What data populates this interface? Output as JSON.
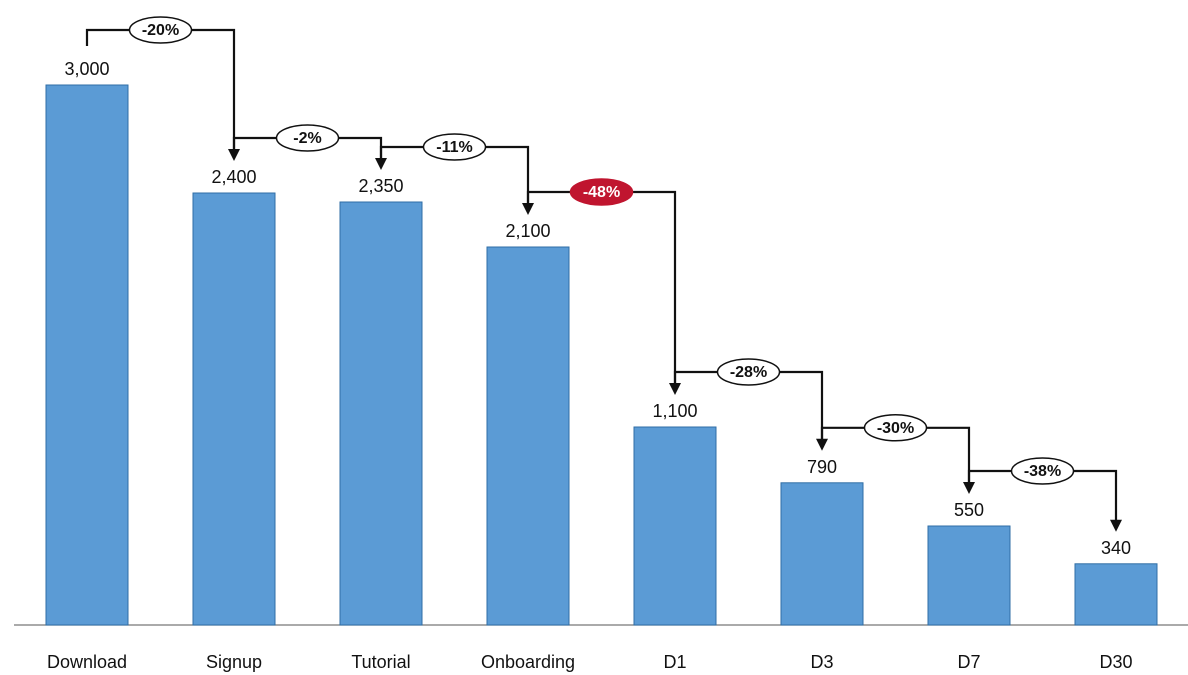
{
  "chart_data": {
    "type": "bar",
    "categories": [
      "Download",
      "Signup",
      "Tutorial",
      "Onboarding",
      "D1",
      "D3",
      "D7",
      "D30"
    ],
    "values": [
      3000,
      2400,
      2350,
      2100,
      1100,
      790,
      550,
      340
    ],
    "value_labels": [
      "3,000",
      "2,400",
      "2,350",
      "2,100",
      "1,100",
      "790",
      "550",
      "340"
    ],
    "step_changes": [
      "-20%",
      "-2%",
      "-11%",
      "-48%",
      "-28%",
      "-30%",
      "-38%"
    ],
    "highlighted_step": "-48%",
    "title": "",
    "xlabel": "",
    "ylabel": "",
    "ylim": [
      0,
      3000
    ],
    "grid": false,
    "legend": "none"
  },
  "colors": {
    "bar": "#5b9bd5",
    "bar_border": "#2f6ea6",
    "connector": "#111111",
    "highlight": "#c0152f",
    "baseline": "#777777"
  }
}
